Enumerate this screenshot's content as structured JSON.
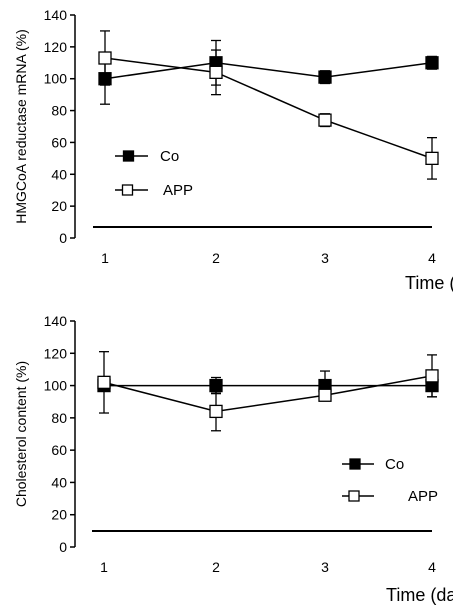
{
  "chart_data": [
    {
      "type": "line",
      "title": "",
      "xlabel": "Time (day)",
      "ylabel": "HMGCoA reductase mRNA (%)",
      "ylim": [
        0,
        140
      ],
      "yticks": [
        0,
        20,
        40,
        60,
        80,
        100,
        120,
        140
      ],
      "x": [
        1,
        2,
        3,
        4
      ],
      "grid": false,
      "legend_position": "middle-left",
      "series": [
        {
          "name": "Co",
          "marker": "filled-square",
          "values": [
            100,
            110,
            101,
            110
          ],
          "errors": [
            16,
            14,
            4,
            4
          ]
        },
        {
          "name": "APP",
          "marker": "open-square",
          "values": [
            113,
            104,
            74,
            50
          ],
          "errors": [
            17,
            14,
            4,
            13
          ]
        }
      ]
    },
    {
      "type": "line",
      "title": "",
      "xlabel": "Time (day)",
      "ylabel": "Cholesterol content (%)",
      "ylim": [
        0,
        140
      ],
      "yticks": [
        0,
        20,
        40,
        60,
        80,
        100,
        120,
        140
      ],
      "x": [
        1,
        2,
        3,
        4
      ],
      "grid": false,
      "legend_position": "bottom-right",
      "series": [
        {
          "name": "Co",
          "marker": "filled-square",
          "values": [
            100,
            100,
            100,
            100
          ],
          "errors": [
            3,
            5,
            9,
            7
          ]
        },
        {
          "name": "APP",
          "marker": "open-square",
          "values": [
            102,
            84,
            94,
            106
          ],
          "errors": [
            19,
            12,
            3,
            13
          ]
        }
      ]
    }
  ]
}
